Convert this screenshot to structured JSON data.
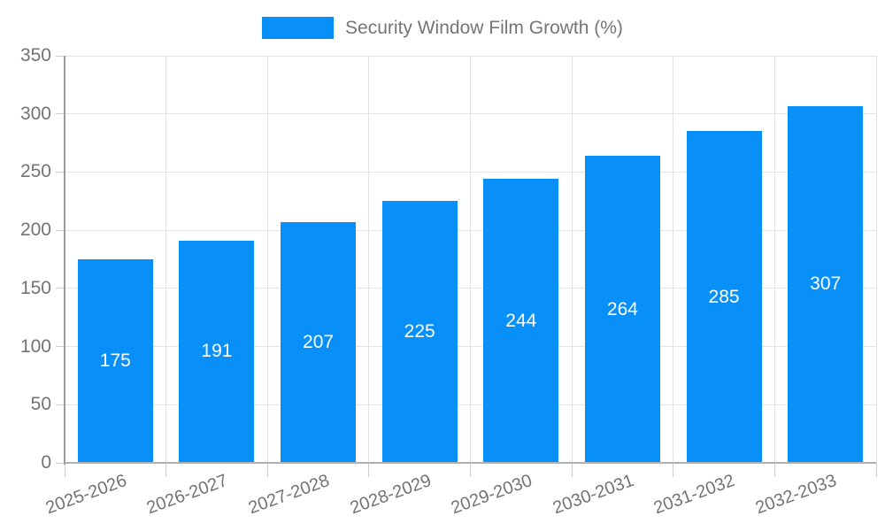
{
  "chart_data": {
    "type": "bar",
    "title": "Security Window Film Growth (%)",
    "series_name": "Security Window Film Growth (%)",
    "categories": [
      "2025-2026",
      "2026-2027",
      "2027-2028",
      "2028-2029",
      "2029-2030",
      "2030-2031",
      "2031-2032",
      "2032-2033"
    ],
    "values": [
      175,
      191,
      207,
      225,
      244,
      264,
      285,
      307
    ],
    "xlabel": "",
    "ylabel": "",
    "ylim": [
      0,
      350
    ],
    "yticks": [
      0,
      50,
      100,
      150,
      200,
      250,
      300,
      350
    ],
    "grid": true,
    "legend_position": "top-center",
    "value_labels_position": "inside-center",
    "colors": {
      "bar": "#088ff8",
      "value_label": "#ffffff",
      "axis_text": "#737373",
      "legend_text": "#757575",
      "grid_line": "#e3e3e3",
      "tick_mark": "#cccccc",
      "y_axis_line": "#9a9a9a",
      "x_axis_line": "#b0b0b0",
      "background": "#ffffff"
    }
  }
}
